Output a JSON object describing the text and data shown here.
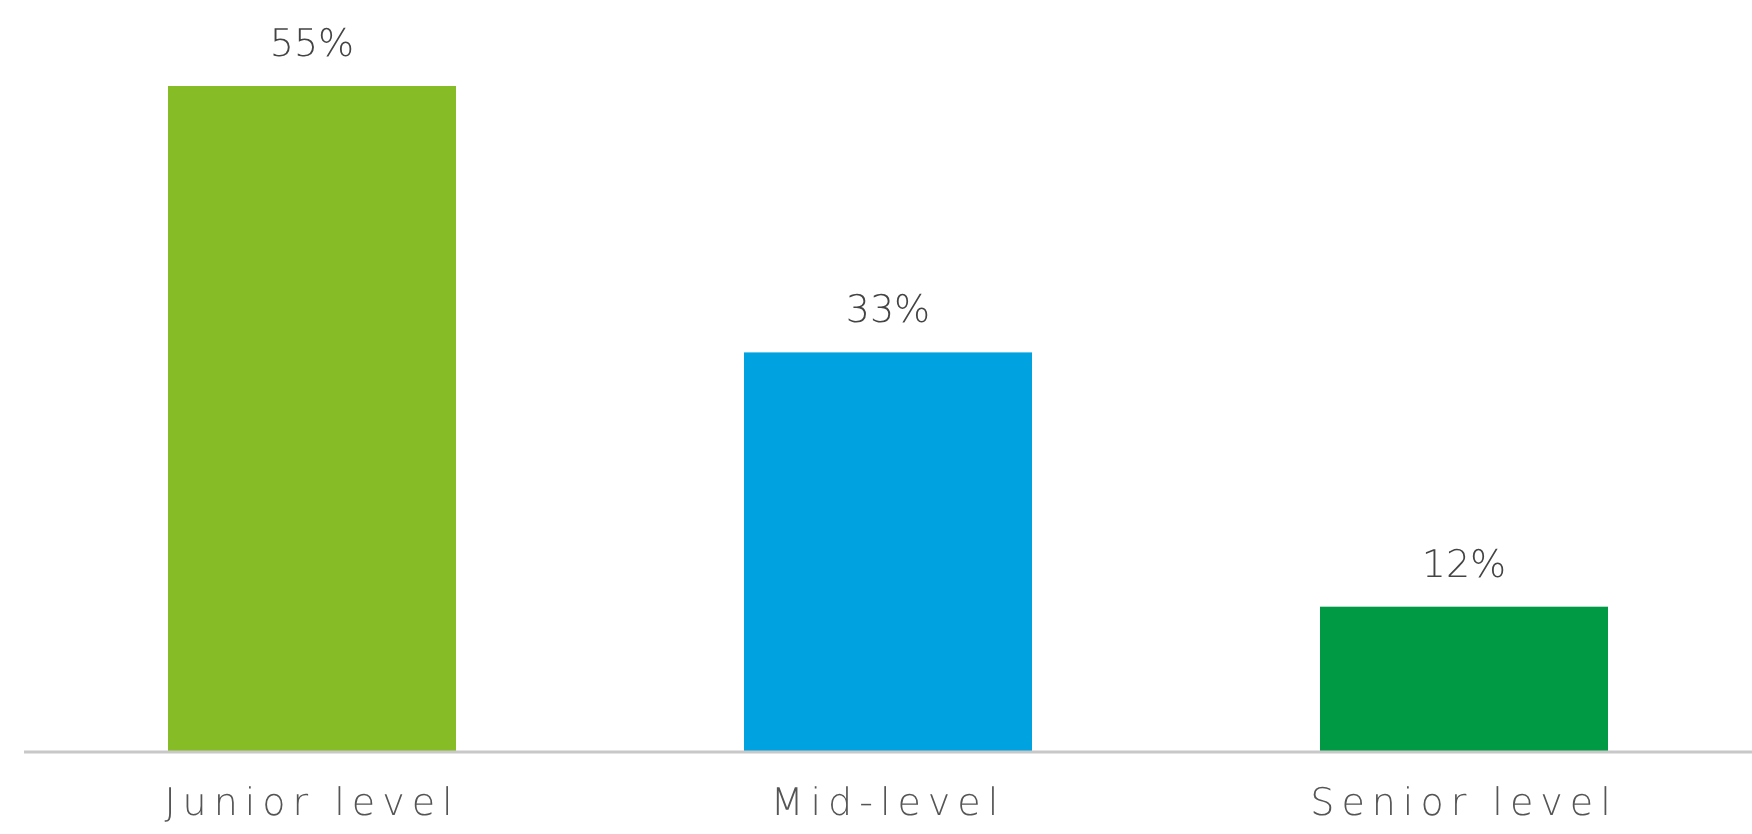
{
  "chart_data": {
    "type": "bar",
    "categories": [
      "Junior level",
      "Mid-level",
      "Senior level"
    ],
    "values": [
      55,
      33,
      12
    ],
    "colors": [
      "#86bc25",
      "#00a3e0",
      "#009a44"
    ],
    "value_labels": [
      "55%",
      "33%",
      "12%"
    ]
  }
}
